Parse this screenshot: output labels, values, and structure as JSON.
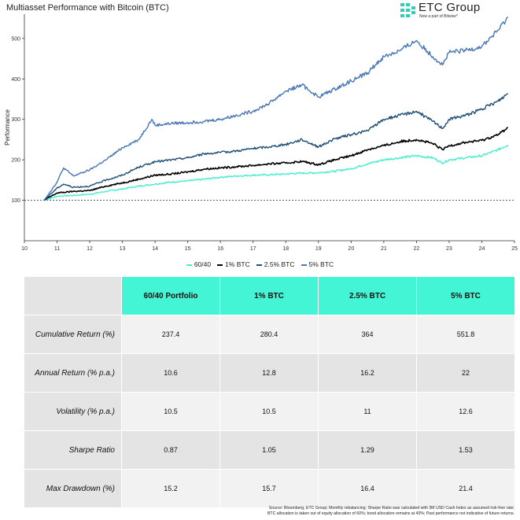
{
  "title": "Multiasset Performance with Bitcoin (BTC)",
  "brand": {
    "name": "ETC Group",
    "subtitle": "Now a part of Bitwise*",
    "color": "#2bd1b4"
  },
  "chart_data": {
    "type": "line",
    "title": "Multiasset Performance with Bitcoin (BTC)",
    "xlabel": "",
    "ylabel": "Performance",
    "xlim": [
      10,
      25
    ],
    "ylim": [
      0,
      560
    ],
    "xticks": [
      10,
      11,
      12,
      13,
      14,
      15,
      16,
      17,
      18,
      19,
      20,
      21,
      22,
      23,
      24,
      25
    ],
    "yticks": [
      100,
      200,
      300,
      400,
      500
    ],
    "reference_line": {
      "y": 100,
      "style": "dashed",
      "color": "#444444"
    },
    "series": [
      {
        "name": "60/40",
        "color": "#43f0d0",
        "x": [
          10.6,
          11.0,
          11.5,
          12.0,
          12.5,
          13.0,
          13.5,
          14.0,
          14.5,
          15.0,
          15.5,
          16.0,
          16.5,
          17.0,
          17.5,
          18.0,
          18.5,
          19.0,
          19.5,
          20.0,
          20.5,
          21.0,
          21.5,
          22.0,
          22.5,
          22.8,
          23.0,
          23.5,
          24.0,
          24.5,
          24.8
        ],
        "values": [
          100,
          110,
          112,
          115,
          122,
          128,
          135,
          140,
          145,
          148,
          152,
          157,
          160,
          162,
          163,
          165,
          167,
          168,
          172,
          178,
          190,
          200,
          205,
          210,
          205,
          192,
          200,
          205,
          210,
          225,
          237
        ]
      },
      {
        "name": "1% BTC",
        "color": "#000000",
        "x": [
          10.6,
          11.0,
          11.5,
          12.0,
          12.5,
          13.0,
          13.5,
          14.0,
          14.5,
          15.0,
          15.5,
          16.0,
          16.5,
          17.0,
          17.5,
          18.0,
          18.5,
          19.0,
          19.5,
          20.0,
          20.5,
          21.0,
          21.5,
          22.0,
          22.5,
          22.8,
          23.0,
          23.5,
          24.0,
          24.5,
          24.8
        ],
        "values": [
          100,
          118,
          122,
          124,
          135,
          143,
          152,
          162,
          165,
          170,
          177,
          180,
          183,
          186,
          190,
          192,
          196,
          188,
          200,
          210,
          225,
          235,
          245,
          250,
          240,
          225,
          235,
          243,
          248,
          262,
          280
        ]
      },
      {
        "name": "2.5% BTC",
        "color": "#1f4e79",
        "x": [
          10.6,
          11.0,
          11.2,
          11.5,
          12.0,
          12.5,
          13.0,
          13.5,
          14.0,
          14.5,
          15.0,
          15.5,
          16.0,
          16.5,
          17.0,
          17.5,
          18.0,
          18.5,
          19.0,
          19.5,
          20.0,
          20.5,
          21.0,
          21.5,
          22.0,
          22.5,
          22.8,
          23.0,
          23.5,
          24.0,
          24.5,
          24.8
        ],
        "values": [
          100,
          130,
          140,
          132,
          135,
          150,
          162,
          182,
          195,
          200,
          205,
          215,
          218,
          222,
          228,
          232,
          238,
          250,
          232,
          252,
          262,
          272,
          300,
          310,
          320,
          295,
          278,
          300,
          310,
          325,
          345,
          364
        ]
      },
      {
        "name": "5% BTC",
        "color": "#4a77b8",
        "x": [
          10.6,
          11.0,
          11.2,
          11.5,
          12.0,
          12.5,
          13.0,
          13.5,
          13.9,
          14.0,
          14.5,
          15.0,
          15.5,
          16.0,
          16.5,
          17.0,
          17.5,
          18.0,
          18.5,
          19.0,
          19.5,
          20.0,
          20.5,
          21.0,
          21.5,
          22.0,
          22.5,
          22.8,
          23.0,
          23.5,
          24.0,
          24.5,
          24.8
        ],
        "values": [
          100,
          145,
          180,
          160,
          175,
          200,
          230,
          250,
          300,
          285,
          290,
          292,
          295,
          300,
          310,
          320,
          340,
          370,
          385,
          355,
          375,
          395,
          415,
          455,
          470,
          495,
          455,
          435,
          465,
          470,
          480,
          520,
          552
        ]
      }
    ]
  },
  "legend": [
    {
      "label": "60/40",
      "color": "#43f0d0"
    },
    {
      "label": "1% BTC",
      "color": "#000000"
    },
    {
      "label": "2.5% BTC",
      "color": "#1f4e79"
    },
    {
      "label": "5% BTC",
      "color": "#4a77b8"
    }
  ],
  "table": {
    "columns": [
      "60/40 Portfolio",
      "1% BTC",
      "2.5% BTC",
      "5% BTC"
    ],
    "rows": [
      {
        "label": "Cumulative Return (%)",
        "values": [
          "237.4",
          "280.4",
          "364",
          "551.8"
        ]
      },
      {
        "label": "Annual Return (% p.a.)",
        "values": [
          "10.6",
          "12.8",
          "16.2",
          "22"
        ]
      },
      {
        "label": "Volatility (% p.a.)",
        "values": [
          "10.5",
          "10.5",
          "11",
          "12.6"
        ]
      },
      {
        "label": "Sharpe Ratio",
        "values": [
          "0.87",
          "1.05",
          "1.29",
          "1.53"
        ]
      },
      {
        "label": "Max Drawdown (%)",
        "values": [
          "15.2",
          "15.7",
          "16.4",
          "21.4"
        ]
      }
    ]
  },
  "source": {
    "line1": "Source: Bloomberg, ETC Group; Monthly rebalancing; Sharpe Ratio was calculated with 3M USD Cash Index as assumed risk-free rate;",
    "line2": "BTC allocation is taken out of equity allocation of 60%; bond allocation remains at 40%; Past performance not indicative of future returns."
  }
}
